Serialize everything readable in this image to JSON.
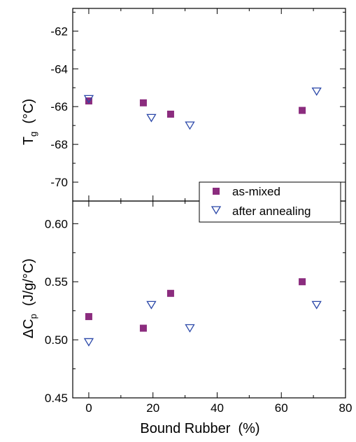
{
  "chart_data": [
    {
      "type": "scatter",
      "ylabel": {
        "main": "T",
        "sub": "g",
        "rest": "  (°C)"
      },
      "ylim": [
        -71,
        -60.8
      ],
      "yticks": [
        -62,
        -64,
        -66,
        -68,
        -70
      ],
      "ytick_labels": [
        "-62",
        "-64",
        "-66",
        "-68",
        "-70"
      ],
      "series": [
        {
          "name": "as-mixed",
          "marker": "filled-square",
          "color": "#8b2c7e",
          "x": [
            0,
            17,
            25.5,
            66.5
          ],
          "y": [
            -65.7,
            -65.8,
            -66.4,
            -66.2
          ]
        },
        {
          "name": "after annealing",
          "marker": "open-triangle-down",
          "color": "#2a47a8",
          "x": [
            0,
            19.5,
            31.5,
            71
          ],
          "y": [
            -65.6,
            -66.6,
            -67.0,
            -65.2
          ]
        }
      ]
    },
    {
      "type": "scatter",
      "ylabel": {
        "main": "ΔC",
        "sub": "p",
        "rest": "  (J/g/°C)"
      },
      "ylim": [
        0.45,
        0.6195
      ],
      "yticks": [
        0.45,
        0.5,
        0.55,
        0.6
      ],
      "ytick_labels": [
        "0.45",
        "0.50",
        "0.55",
        "0.60"
      ],
      "series": [
        {
          "name": "as-mixed",
          "marker": "filled-square",
          "color": "#8b2c7e",
          "x": [
            0,
            17,
            25.5,
            66.5
          ],
          "y": [
            0.52,
            0.51,
            0.54,
            0.55
          ]
        },
        {
          "name": "after annealing",
          "marker": "open-triangle-down",
          "color": "#2a47a8",
          "x": [
            0,
            19.5,
            31.5,
            71
          ],
          "y": [
            0.498,
            0.53,
            0.51,
            0.53
          ]
        }
      ]
    }
  ],
  "x_axis": {
    "label": "Bound Rubber  (%)",
    "xlim": [
      -5,
      80
    ],
    "ticks": [
      0,
      20,
      40,
      60,
      80
    ],
    "tick_labels": [
      "0",
      "20",
      "40",
      "60",
      "80"
    ]
  },
  "legend": {
    "placement": "right, at panel boundary",
    "entries": [
      "as-mixed",
      "after annealing"
    ]
  }
}
